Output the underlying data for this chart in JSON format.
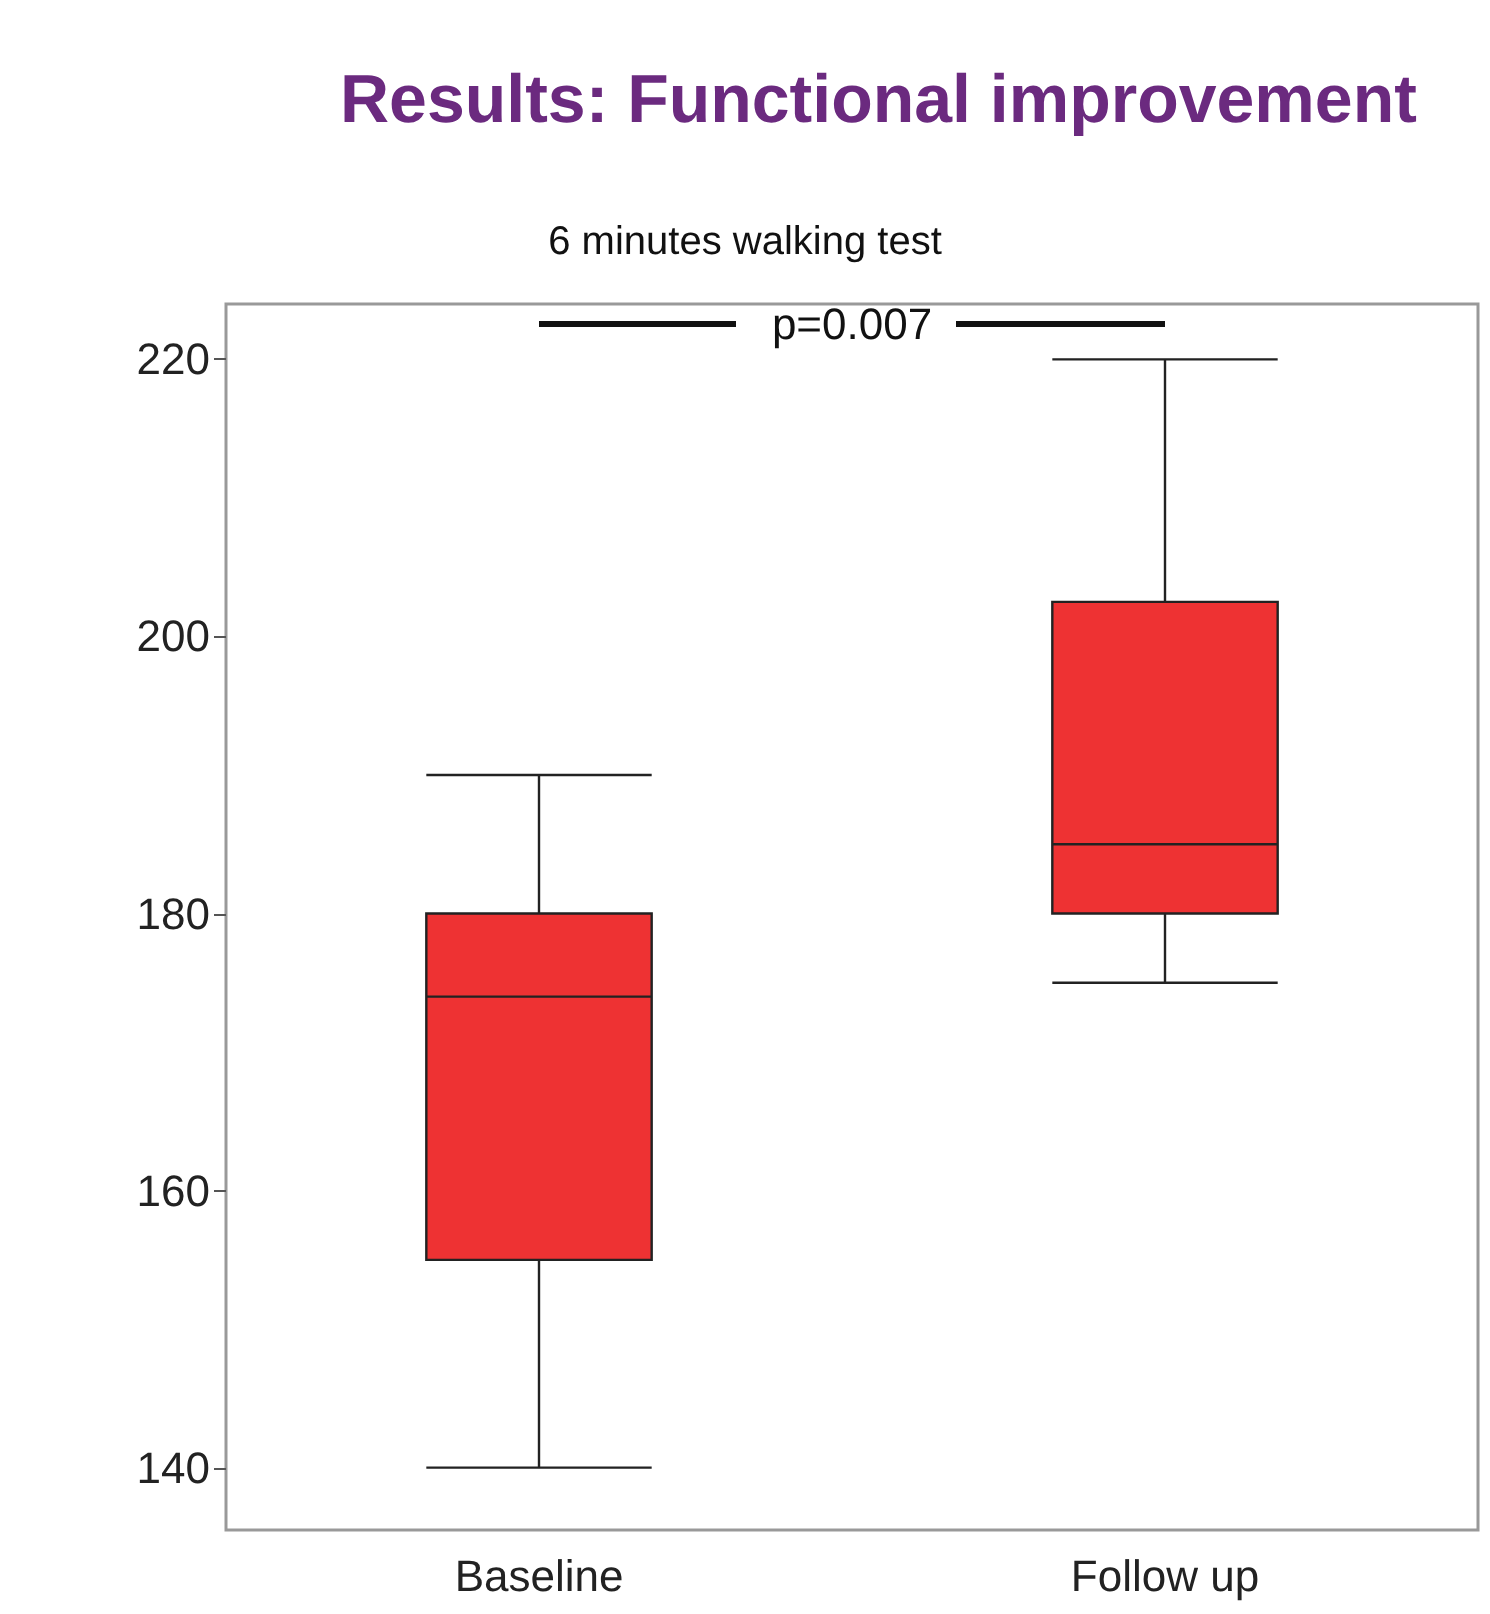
{
  "chart_data": {
    "type": "box",
    "title": "Results: Functional improvement",
    "subtitle": "6 minutes walking test",
    "categories": [
      "Baseline",
      "Follow up"
    ],
    "boxes": [
      {
        "low": 140,
        "q1": 155,
        "median": 174,
        "q3": 180,
        "high": 190
      },
      {
        "low": 175,
        "q1": 180,
        "median": 185,
        "q3": 202.5,
        "high": 220
      }
    ],
    "color": "#ee3233",
    "ylim": [
      135.5,
      224
    ],
    "yticks": [
      140,
      160,
      180,
      200,
      220
    ],
    "grid": false,
    "annotations": [
      "p=0.007"
    ]
  }
}
